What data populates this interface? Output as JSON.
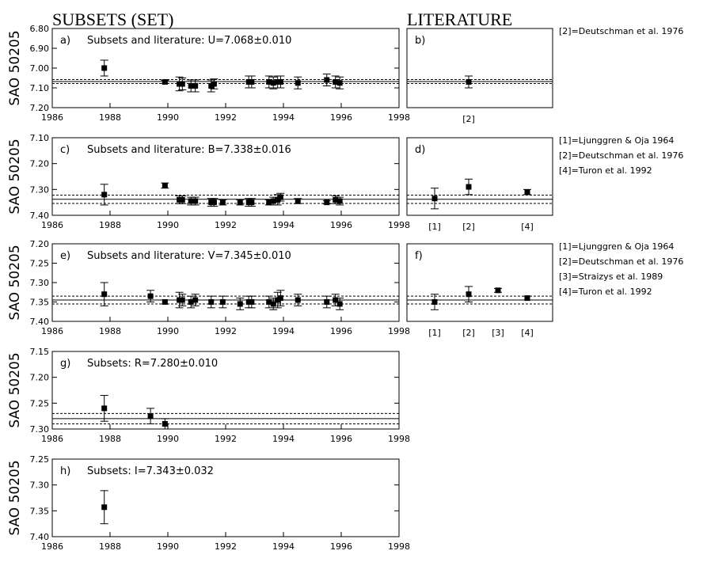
{
  "headers": {
    "subsets": "SUBSETS (SET)",
    "literature": "LITERATURE"
  },
  "chart_data": [
    {
      "type": "scatter",
      "panel": "a",
      "title": "Subsets and literature: U=7.068±0.010",
      "ylabel": "SAO 50205",
      "xlim": [
        1986,
        1998
      ],
      "ylim": [
        6.8,
        7.2
      ],
      "yticks": [
        "6.80",
        "6.90",
        "7.00",
        "7.10",
        "7.20"
      ],
      "xticks": [
        "1986",
        "1988",
        "1990",
        "1992",
        "1994",
        "1996",
        "1998"
      ],
      "mean": 7.068,
      "err": 0.01,
      "points": [
        {
          "x": 1987.8,
          "y": 7.0,
          "e": 0.04
        },
        {
          "x": 1989.9,
          "y": 7.07,
          "e": 0.005
        },
        {
          "x": 1990.4,
          "y": 7.08,
          "e": 0.035
        },
        {
          "x": 1990.5,
          "y": 7.08,
          "e": 0.03
        },
        {
          "x": 1990.8,
          "y": 7.09,
          "e": 0.03
        },
        {
          "x": 1990.95,
          "y": 7.09,
          "e": 0.03
        },
        {
          "x": 1991.5,
          "y": 7.09,
          "e": 0.03
        },
        {
          "x": 1991.6,
          "y": 7.08,
          "e": 0.025
        },
        {
          "x": 1992.8,
          "y": 7.07,
          "e": 0.03
        },
        {
          "x": 1992.9,
          "y": 7.07,
          "e": 0.03
        },
        {
          "x": 1993.5,
          "y": 7.07,
          "e": 0.03
        },
        {
          "x": 1993.65,
          "y": 7.075,
          "e": 0.03
        },
        {
          "x": 1993.8,
          "y": 7.07,
          "e": 0.03
        },
        {
          "x": 1993.9,
          "y": 7.07,
          "e": 0.03
        },
        {
          "x": 1994.5,
          "y": 7.075,
          "e": 0.03
        },
        {
          "x": 1995.5,
          "y": 7.06,
          "e": 0.03
        },
        {
          "x": 1995.8,
          "y": 7.07,
          "e": 0.03
        },
        {
          "x": 1995.95,
          "y": 7.075,
          "e": 0.03
        }
      ]
    },
    {
      "type": "scatter",
      "panel": "b",
      "ylim": [
        6.8,
        7.2
      ],
      "mean": 7.068,
      "err": 0.01,
      "refs": [
        "[2]"
      ],
      "points": [
        {
          "x": 2,
          "y": 7.07,
          "e": 0.03
        }
      ],
      "legend": [
        "[2]=Deutschman et al. 1976"
      ]
    },
    {
      "type": "scatter",
      "panel": "c",
      "title": "Subsets and literature: B=7.338±0.016",
      "ylabel": "SAO 50205",
      "xlim": [
        1986,
        1998
      ],
      "ylim": [
        7.1,
        7.4
      ],
      "yticks": [
        "7.10",
        "7.20",
        "7.30",
        "7.40"
      ],
      "xticks": [
        "1986",
        "1988",
        "1990",
        "1992",
        "1994",
        "1996",
        "1998"
      ],
      "mean": 7.338,
      "err": 0.016,
      "points": [
        {
          "x": 1987.8,
          "y": 7.32,
          "e": 0.04
        },
        {
          "x": 1989.9,
          "y": 7.285,
          "e": 0.01
        },
        {
          "x": 1990.4,
          "y": 7.34,
          "e": 0.015
        },
        {
          "x": 1990.5,
          "y": 7.34,
          "e": 0.015
        },
        {
          "x": 1990.8,
          "y": 7.345,
          "e": 0.015
        },
        {
          "x": 1990.95,
          "y": 7.345,
          "e": 0.015
        },
        {
          "x": 1991.5,
          "y": 7.35,
          "e": 0.015
        },
        {
          "x": 1991.6,
          "y": 7.35,
          "e": 0.015
        },
        {
          "x": 1991.9,
          "y": 7.35,
          "e": 0.01
        },
        {
          "x": 1992.5,
          "y": 7.35,
          "e": 0.01
        },
        {
          "x": 1992.8,
          "y": 7.35,
          "e": 0.015
        },
        {
          "x": 1992.9,
          "y": 7.35,
          "e": 0.015
        },
        {
          "x": 1993.5,
          "y": 7.35,
          "e": 0.01
        },
        {
          "x": 1993.65,
          "y": 7.345,
          "e": 0.015
        },
        {
          "x": 1993.8,
          "y": 7.34,
          "e": 0.02
        },
        {
          "x": 1993.9,
          "y": 7.33,
          "e": 0.015
        },
        {
          "x": 1994.5,
          "y": 7.345,
          "e": 0.01
        },
        {
          "x": 1995.5,
          "y": 7.35,
          "e": 0.005
        },
        {
          "x": 1995.8,
          "y": 7.34,
          "e": 0.015
        },
        {
          "x": 1995.95,
          "y": 7.345,
          "e": 0.015
        }
      ]
    },
    {
      "type": "scatter",
      "panel": "d",
      "ylim": [
        7.1,
        7.4
      ],
      "mean": 7.338,
      "err": 0.016,
      "refs": [
        "[1]",
        "[2]",
        "[4]"
      ],
      "points": [
        {
          "x": 1,
          "y": 7.335,
          "e": 0.04
        },
        {
          "x": 2,
          "y": 7.29,
          "e": 0.03
        },
        {
          "x": 4,
          "y": 7.31,
          "e": 0.01
        }
      ],
      "legend": [
        "[1]=Ljunggren & Oja 1964",
        "[2]=Deutschman et al. 1976",
        "[4]=Turon et al. 1992"
      ]
    },
    {
      "type": "scatter",
      "panel": "e",
      "title": "Subsets and literature: V=7.345±0.010",
      "ylabel": "SAO 50205",
      "xlim": [
        1986,
        1998
      ],
      "ylim": [
        7.2,
        7.4
      ],
      "yticks": [
        "7.20",
        "7.25",
        "7.30",
        "7.35",
        "7.40"
      ],
      "xticks": [
        "1986",
        "1988",
        "1990",
        "1992",
        "1994",
        "1996",
        "1998"
      ],
      "mean": 7.345,
      "err": 0.01,
      "points": [
        {
          "x": 1987.8,
          "y": 7.33,
          "e": 0.03
        },
        {
          "x": 1989.4,
          "y": 7.335,
          "e": 0.015
        },
        {
          "x": 1989.9,
          "y": 7.35,
          "e": 0.005
        },
        {
          "x": 1990.4,
          "y": 7.345,
          "e": 0.02
        },
        {
          "x": 1990.5,
          "y": 7.345,
          "e": 0.015
        },
        {
          "x": 1990.8,
          "y": 7.35,
          "e": 0.015
        },
        {
          "x": 1990.95,
          "y": 7.345,
          "e": 0.015
        },
        {
          "x": 1991.5,
          "y": 7.35,
          "e": 0.015
        },
        {
          "x": 1991.9,
          "y": 7.35,
          "e": 0.015
        },
        {
          "x": 1992.5,
          "y": 7.355,
          "e": 0.015
        },
        {
          "x": 1992.8,
          "y": 7.35,
          "e": 0.015
        },
        {
          "x": 1992.9,
          "y": 7.35,
          "e": 0.015
        },
        {
          "x": 1993.5,
          "y": 7.35,
          "e": 0.015
        },
        {
          "x": 1993.65,
          "y": 7.355,
          "e": 0.015
        },
        {
          "x": 1993.8,
          "y": 7.345,
          "e": 0.02
        },
        {
          "x": 1993.9,
          "y": 7.34,
          "e": 0.02
        },
        {
          "x": 1994.5,
          "y": 7.345,
          "e": 0.015
        },
        {
          "x": 1995.5,
          "y": 7.35,
          "e": 0.015
        },
        {
          "x": 1995.8,
          "y": 7.345,
          "e": 0.015
        },
        {
          "x": 1995.95,
          "y": 7.355,
          "e": 0.015
        }
      ]
    },
    {
      "type": "scatter",
      "panel": "f",
      "ylim": [
        7.2,
        7.4
      ],
      "mean": 7.345,
      "err": 0.01,
      "refs": [
        "[1]",
        "[2]",
        "[3]",
        "[4]"
      ],
      "points": [
        {
          "x": 1,
          "y": 7.35,
          "e": 0.02
        },
        {
          "x": 2,
          "y": 7.33,
          "e": 0.02
        },
        {
          "x": 3,
          "y": 7.32,
          "e": 0.005
        },
        {
          "x": 4,
          "y": 7.34,
          "e": 0.005
        }
      ],
      "legend": [
        "[1]=Ljunggren & Oja 1964",
        "[2]=Deutschman et al. 1976",
        "[3]=Straizys et al. 1989",
        "[4]=Turon et al. 1992"
      ]
    },
    {
      "type": "scatter",
      "panel": "g",
      "title": "Subsets: R=7.280±0.010",
      "ylabel": "SAO 50205",
      "xlim": [
        1986,
        1998
      ],
      "ylim": [
        7.15,
        7.3
      ],
      "yticks": [
        "7.15",
        "7.20",
        "7.25",
        "7.30"
      ],
      "xticks": [
        "1986",
        "1988",
        "1990",
        "1992",
        "1994",
        "1996",
        "1998"
      ],
      "mean": 7.28,
      "err": 0.01,
      "points": [
        {
          "x": 1987.8,
          "y": 7.26,
          "e": 0.025
        },
        {
          "x": 1989.4,
          "y": 7.275,
          "e": 0.015
        },
        {
          "x": 1989.9,
          "y": 7.29,
          "e": 0.01
        }
      ]
    },
    {
      "type": "scatter",
      "panel": "h",
      "title": "Subsets: I=7.343±0.032",
      "ylabel": "SAO 50205",
      "xlim": [
        1986,
        1998
      ],
      "ylim": [
        7.25,
        7.4
      ],
      "yticks": [
        "7.25",
        "7.30",
        "7.35",
        "7.40"
      ],
      "xticks": [
        "1986",
        "1988",
        "1990",
        "1992",
        "1994",
        "1996",
        "1998"
      ],
      "mean": null,
      "err": null,
      "points": [
        {
          "x": 1987.8,
          "y": 7.343,
          "e": 0.032
        }
      ]
    }
  ]
}
